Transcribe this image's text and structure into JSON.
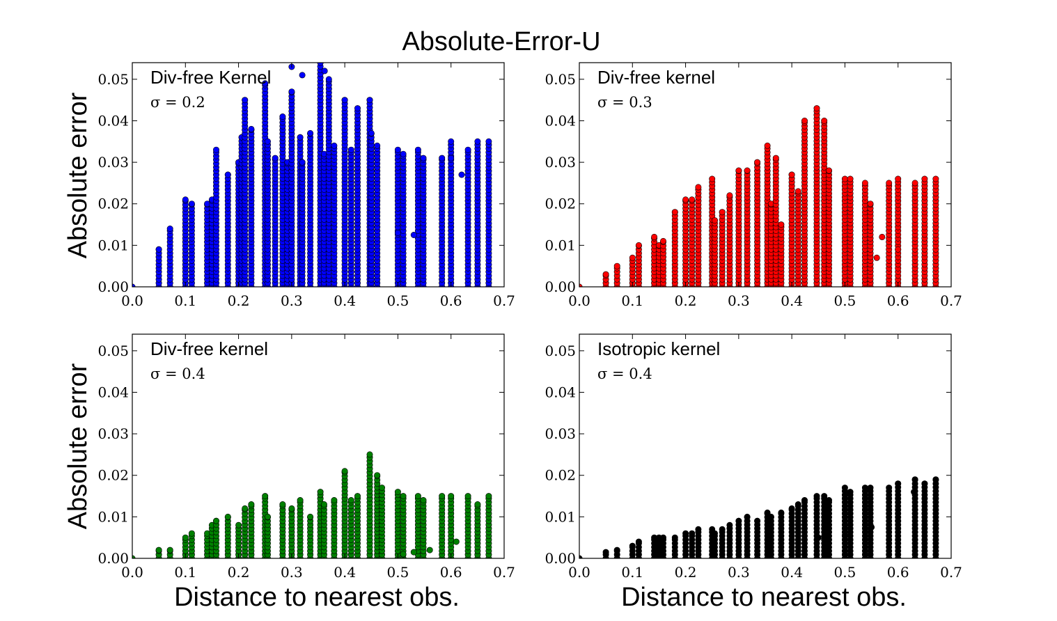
{
  "figure": {
    "suptitle": "Absolute-Error-U",
    "ylabel": "Absolute error",
    "xlabel": "Distance to nearest obs."
  },
  "chart_data": [
    {
      "type": "scatter",
      "annotation": "Div-free Kernel",
      "sigma_label": "σ = 0.2",
      "color": "#0000ff",
      "xlim": [
        0.0,
        0.7
      ],
      "ylim": [
        0.0,
        0.054
      ],
      "xticks": [
        "0.0",
        "0.1",
        "0.2",
        "0.3",
        "0.4",
        "0.5",
        "0.6",
        "0.7"
      ],
      "yticks": [
        "0.00",
        "0.01",
        "0.02",
        "0.03",
        "0.04",
        "0.05"
      ],
      "columns": [
        {
          "x": 0.0,
          "ymax": 0.0
        },
        {
          "x": 0.05,
          "ymax": 0.009
        },
        {
          "x": 0.071,
          "ymax": 0.014
        },
        {
          "x": 0.1,
          "ymax": 0.021
        },
        {
          "x": 0.112,
          "ymax": 0.02
        },
        {
          "x": 0.141,
          "ymax": 0.02
        },
        {
          "x": 0.15,
          "ymax": 0.021
        },
        {
          "x": 0.158,
          "ymax": 0.033
        },
        {
          "x": 0.18,
          "ymax": 0.027
        },
        {
          "x": 0.2,
          "ymax": 0.03
        },
        {
          "x": 0.206,
          "ymax": 0.036
        },
        {
          "x": 0.212,
          "ymax": 0.045
        },
        {
          "x": 0.224,
          "ymax": 0.038
        },
        {
          "x": 0.25,
          "ymax": 0.049
        },
        {
          "x": 0.255,
          "ymax": 0.035
        },
        {
          "x": 0.269,
          "ymax": 0.031
        },
        {
          "x": 0.283,
          "ymax": 0.041
        },
        {
          "x": 0.292,
          "ymax": 0.03
        },
        {
          "x": 0.3,
          "ymax": 0.047
        },
        {
          "x": 0.316,
          "ymax": 0.036
        },
        {
          "x": 0.32,
          "ymax": 0.03
        },
        {
          "x": 0.335,
          "ymax": 0.037
        },
        {
          "x": 0.354,
          "ymax": 0.054
        },
        {
          "x": 0.361,
          "ymax": 0.032
        },
        {
          "x": 0.37,
          "ymax": 0.05
        },
        {
          "x": 0.38,
          "ymax": 0.034
        },
        {
          "x": 0.4,
          "ymax": 0.045
        },
        {
          "x": 0.412,
          "ymax": 0.033
        },
        {
          "x": 0.424,
          "ymax": 0.043
        },
        {
          "x": 0.447,
          "ymax": 0.045
        },
        {
          "x": 0.45,
          "ymax": 0.037
        },
        {
          "x": 0.461,
          "ymax": 0.034
        },
        {
          "x": 0.5,
          "ymax": 0.033
        },
        {
          "x": 0.51,
          "ymax": 0.032
        },
        {
          "x": 0.538,
          "ymax": 0.033
        },
        {
          "x": 0.548,
          "ymax": 0.031
        },
        {
          "x": 0.583,
          "ymax": 0.031
        },
        {
          "x": 0.6,
          "ymax": 0.035
        },
        {
          "x": 0.632,
          "ymax": 0.033
        },
        {
          "x": 0.65,
          "ymax": 0.035
        },
        {
          "x": 0.671,
          "ymax": 0.035
        }
      ],
      "extra_points": [
        {
          "x": 0.3,
          "y": 0.053
        },
        {
          "x": 0.32,
          "y": 0.051
        },
        {
          "x": 0.362,
          "y": 0.052
        },
        {
          "x": 0.5,
          "y": 0.013
        },
        {
          "x": 0.53,
          "y": 0.0125
        },
        {
          "x": 0.62,
          "y": 0.027
        },
        {
          "x": 0.6,
          "y": 0.031
        }
      ]
    },
    {
      "type": "scatter",
      "annotation": "Div-free kernel",
      "sigma_label": "σ = 0.3",
      "color": "#ff0000",
      "xlim": [
        0.0,
        0.7
      ],
      "ylim": [
        0.0,
        0.054
      ],
      "xticks": [
        "0.0",
        "0.1",
        "0.2",
        "0.3",
        "0.4",
        "0.5",
        "0.6",
        "0.7"
      ],
      "yticks": [
        "0.00",
        "0.01",
        "0.02",
        "0.03",
        "0.04",
        "0.05"
      ],
      "columns": [
        {
          "x": 0.0,
          "ymax": 0.0
        },
        {
          "x": 0.05,
          "ymax": 0.003
        },
        {
          "x": 0.071,
          "ymax": 0.005
        },
        {
          "x": 0.1,
          "ymax": 0.007
        },
        {
          "x": 0.112,
          "ymax": 0.01
        },
        {
          "x": 0.141,
          "ymax": 0.012
        },
        {
          "x": 0.15,
          "ymax": 0.01
        },
        {
          "x": 0.158,
          "ymax": 0.011
        },
        {
          "x": 0.18,
          "ymax": 0.018
        },
        {
          "x": 0.2,
          "ymax": 0.021
        },
        {
          "x": 0.212,
          "ymax": 0.021
        },
        {
          "x": 0.224,
          "ymax": 0.024
        },
        {
          "x": 0.25,
          "ymax": 0.026
        },
        {
          "x": 0.255,
          "ymax": 0.016
        },
        {
          "x": 0.269,
          "ymax": 0.018
        },
        {
          "x": 0.283,
          "ymax": 0.022
        },
        {
          "x": 0.3,
          "ymax": 0.028
        },
        {
          "x": 0.316,
          "ymax": 0.028
        },
        {
          "x": 0.335,
          "ymax": 0.03
        },
        {
          "x": 0.354,
          "ymax": 0.034
        },
        {
          "x": 0.361,
          "ymax": 0.02
        },
        {
          "x": 0.37,
          "ymax": 0.031
        },
        {
          "x": 0.38,
          "ymax": 0.015
        },
        {
          "x": 0.4,
          "ymax": 0.027
        },
        {
          "x": 0.412,
          "ymax": 0.023
        },
        {
          "x": 0.424,
          "ymax": 0.04
        },
        {
          "x": 0.447,
          "ymax": 0.043
        },
        {
          "x": 0.461,
          "ymax": 0.04
        },
        {
          "x": 0.47,
          "ymax": 0.028
        },
        {
          "x": 0.5,
          "ymax": 0.026
        },
        {
          "x": 0.51,
          "ymax": 0.026
        },
        {
          "x": 0.538,
          "ymax": 0.025
        },
        {
          "x": 0.548,
          "ymax": 0.02
        },
        {
          "x": 0.583,
          "ymax": 0.025
        },
        {
          "x": 0.6,
          "ymax": 0.026
        },
        {
          "x": 0.632,
          "ymax": 0.025
        },
        {
          "x": 0.65,
          "ymax": 0.026
        },
        {
          "x": 0.671,
          "ymax": 0.026
        }
      ],
      "extra_points": [
        {
          "x": 0.56,
          "y": 0.007
        },
        {
          "x": 0.6,
          "y": 0.009
        },
        {
          "x": 0.57,
          "y": 0.012
        }
      ]
    },
    {
      "type": "scatter",
      "annotation": "Div-free kernel",
      "sigma_label": "σ = 0.4",
      "color": "#008000",
      "xlim": [
        0.0,
        0.7
      ],
      "ylim": [
        0.0,
        0.054
      ],
      "xticks": [
        "0.0",
        "0.1",
        "0.2",
        "0.3",
        "0.4",
        "0.5",
        "0.6",
        "0.7"
      ],
      "yticks": [
        "0.00",
        "0.01",
        "0.02",
        "0.03",
        "0.04",
        "0.05"
      ],
      "columns": [
        {
          "x": 0.0,
          "ymax": 0.0
        },
        {
          "x": 0.05,
          "ymax": 0.002
        },
        {
          "x": 0.071,
          "ymax": 0.002
        },
        {
          "x": 0.1,
          "ymax": 0.005
        },
        {
          "x": 0.112,
          "ymax": 0.006
        },
        {
          "x": 0.141,
          "ymax": 0.006
        },
        {
          "x": 0.15,
          "ymax": 0.008
        },
        {
          "x": 0.158,
          "ymax": 0.009
        },
        {
          "x": 0.18,
          "ymax": 0.01
        },
        {
          "x": 0.2,
          "ymax": 0.008
        },
        {
          "x": 0.212,
          "ymax": 0.012
        },
        {
          "x": 0.224,
          "ymax": 0.013
        },
        {
          "x": 0.25,
          "ymax": 0.015
        },
        {
          "x": 0.255,
          "ymax": 0.01
        },
        {
          "x": 0.283,
          "ymax": 0.013
        },
        {
          "x": 0.3,
          "ymax": 0.012
        },
        {
          "x": 0.316,
          "ymax": 0.014
        },
        {
          "x": 0.335,
          "ymax": 0.01
        },
        {
          "x": 0.354,
          "ymax": 0.016
        },
        {
          "x": 0.361,
          "ymax": 0.013
        },
        {
          "x": 0.38,
          "ymax": 0.014
        },
        {
          "x": 0.4,
          "ymax": 0.021
        },
        {
          "x": 0.412,
          "ymax": 0.014
        },
        {
          "x": 0.424,
          "ymax": 0.015
        },
        {
          "x": 0.447,
          "ymax": 0.025
        },
        {
          "x": 0.461,
          "ymax": 0.02
        },
        {
          "x": 0.47,
          "ymax": 0.017
        },
        {
          "x": 0.5,
          "ymax": 0.016
        },
        {
          "x": 0.51,
          "ymax": 0.015
        },
        {
          "x": 0.538,
          "ymax": 0.015
        },
        {
          "x": 0.548,
          "ymax": 0.014
        },
        {
          "x": 0.583,
          "ymax": 0.015
        },
        {
          "x": 0.6,
          "ymax": 0.015
        },
        {
          "x": 0.632,
          "ymax": 0.015
        },
        {
          "x": 0.65,
          "ymax": 0.013
        },
        {
          "x": 0.671,
          "ymax": 0.015
        }
      ],
      "extra_points": [
        {
          "x": 0.51,
          "y": 0.001
        },
        {
          "x": 0.53,
          "y": 0.0015
        },
        {
          "x": 0.56,
          "y": 0.002
        },
        {
          "x": 0.61,
          "y": 0.004
        }
      ]
    },
    {
      "type": "scatter",
      "annotation": "Isotropic kernel",
      "sigma_label": "σ = 0.4",
      "color": "#000000",
      "xlim": [
        0.0,
        0.7
      ],
      "ylim": [
        0.0,
        0.054
      ],
      "xticks": [
        "0.0",
        "0.1",
        "0.2",
        "0.3",
        "0.4",
        "0.5",
        "0.6",
        "0.7"
      ],
      "yticks": [
        "0.00",
        "0.01",
        "0.02",
        "0.03",
        "0.04",
        "0.05"
      ],
      "columns": [
        {
          "x": 0.0,
          "ymax": 0.0
        },
        {
          "x": 0.05,
          "ymax": 0.0015
        },
        {
          "x": 0.071,
          "ymax": 0.002
        },
        {
          "x": 0.1,
          "ymax": 0.003
        },
        {
          "x": 0.112,
          "ymax": 0.004
        },
        {
          "x": 0.141,
          "ymax": 0.005
        },
        {
          "x": 0.15,
          "ymax": 0.005
        },
        {
          "x": 0.158,
          "ymax": 0.005
        },
        {
          "x": 0.18,
          "ymax": 0.005
        },
        {
          "x": 0.2,
          "ymax": 0.006
        },
        {
          "x": 0.212,
          "ymax": 0.006
        },
        {
          "x": 0.224,
          "ymax": 0.007
        },
        {
          "x": 0.25,
          "ymax": 0.007
        },
        {
          "x": 0.255,
          "ymax": 0.006
        },
        {
          "x": 0.269,
          "ymax": 0.007
        },
        {
          "x": 0.283,
          "ymax": 0.008
        },
        {
          "x": 0.3,
          "ymax": 0.009
        },
        {
          "x": 0.316,
          "ymax": 0.01
        },
        {
          "x": 0.335,
          "ymax": 0.009
        },
        {
          "x": 0.354,
          "ymax": 0.011
        },
        {
          "x": 0.361,
          "ymax": 0.01
        },
        {
          "x": 0.38,
          "ymax": 0.011
        },
        {
          "x": 0.4,
          "ymax": 0.012
        },
        {
          "x": 0.412,
          "ymax": 0.013
        },
        {
          "x": 0.424,
          "ymax": 0.014
        },
        {
          "x": 0.447,
          "ymax": 0.015
        },
        {
          "x": 0.461,
          "ymax": 0.015
        },
        {
          "x": 0.47,
          "ymax": 0.014
        },
        {
          "x": 0.5,
          "ymax": 0.017
        },
        {
          "x": 0.51,
          "ymax": 0.016
        },
        {
          "x": 0.538,
          "ymax": 0.017
        },
        {
          "x": 0.548,
          "ymax": 0.017
        },
        {
          "x": 0.583,
          "ymax": 0.017
        },
        {
          "x": 0.6,
          "ymax": 0.018
        },
        {
          "x": 0.632,
          "ymax": 0.019
        },
        {
          "x": 0.65,
          "ymax": 0.018
        },
        {
          "x": 0.671,
          "ymax": 0.019
        }
      ],
      "extra_points": [
        {
          "x": 0.45,
          "y": 0.005
        },
        {
          "x": 0.5,
          "y": 0.0055
        },
        {
          "x": 0.55,
          "y": 0.0075
        },
        {
          "x": 0.6,
          "y": 0.009
        },
        {
          "x": 0.63,
          "y": 0.016
        }
      ]
    }
  ]
}
